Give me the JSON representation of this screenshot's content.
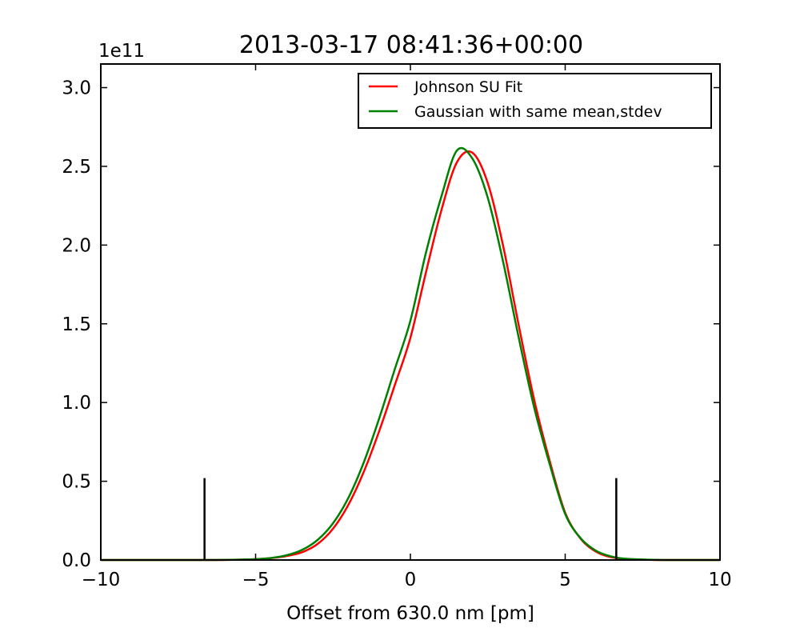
{
  "chart_data": {
    "type": "line",
    "title": "2013-03-17 08:41:36+00:00",
    "xlabel": "Offset from 630.0 nm [pm]",
    "ylabel": "",
    "y_offset_label": "1e11",
    "xlim": [
      -10,
      10
    ],
    "ylim": [
      0,
      3.15
    ],
    "x_ticks": [
      -10,
      -5,
      0,
      5,
      10
    ],
    "x_tick_labels": [
      "−10",
      "−5",
      "0",
      "5",
      "10"
    ],
    "y_ticks": [
      0,
      0.5,
      1,
      1.5,
      2,
      2.5,
      3
    ],
    "y_tick_labels": [
      "0.0",
      "0.5",
      "1.0",
      "1.5",
      "2.0",
      "2.5",
      "3.0"
    ],
    "grid": false,
    "legend_position": "top-right",
    "series": [
      {
        "name": "Johnson SU Fit",
        "color": "#ff0000",
        "x": [
          -10,
          -9,
          -8,
          -7,
          -6,
          -5,
          -4.5,
          -4,
          -3.5,
          -3,
          -2.5,
          -2,
          -1.5,
          -1,
          -0.5,
          0,
          0.5,
          1,
          1.5,
          2,
          2.5,
          3,
          3.5,
          4,
          4.5,
          5,
          5.5,
          6,
          6.5,
          7,
          8,
          9,
          10
        ],
        "y": [
          0,
          0,
          1e-05,
          0.0001,
          0.0009,
          0.0054,
          0.0122,
          0.0255,
          0.0492,
          0.1015,
          0.1987,
          0.3518,
          0.5626,
          0.823,
          1.113,
          1.411,
          1.825,
          2.22,
          2.525,
          2.587,
          2.393,
          1.99,
          1.489,
          1.016,
          0.629,
          0.3,
          0.135,
          0.0527,
          0.0175,
          0.0052,
          0.0003,
          1e-05,
          0
        ]
      },
      {
        "name": "Gaussian with same mean,stdev",
        "color": "#008000",
        "x": [
          -10,
          -9,
          -8,
          -7,
          -6,
          -5,
          -4.5,
          -4,
          -3.5,
          -3,
          -2.5,
          -2,
          -1.5,
          -1,
          -0.5,
          0,
          0.5,
          1,
          1.5,
          2,
          2.5,
          3,
          3.5,
          4,
          4.5,
          5,
          5.5,
          6,
          6.5,
          7,
          8,
          9,
          10
        ],
        "y": [
          0,
          0,
          1e-05,
          0.0001,
          0.0009,
          0.0053,
          0.013,
          0.03,
          0.064,
          0.127,
          0.233,
          0.396,
          0.623,
          0.904,
          1.214,
          1.52,
          1.95,
          2.308,
          2.6,
          2.55,
          2.3,
          1.889,
          1.411,
          0.967,
          0.608,
          0.292,
          0.138,
          0.058,
          0.0219,
          0.0075,
          0.0006,
          3e-05,
          0
        ]
      }
    ],
    "annotations": [
      {
        "kind": "vertical-marker",
        "x": -6.65,
        "y_top": 0.52,
        "color": "#000000"
      },
      {
        "kind": "vertical-marker",
        "x": 6.65,
        "y_top": 0.52,
        "color": "#000000"
      }
    ]
  }
}
